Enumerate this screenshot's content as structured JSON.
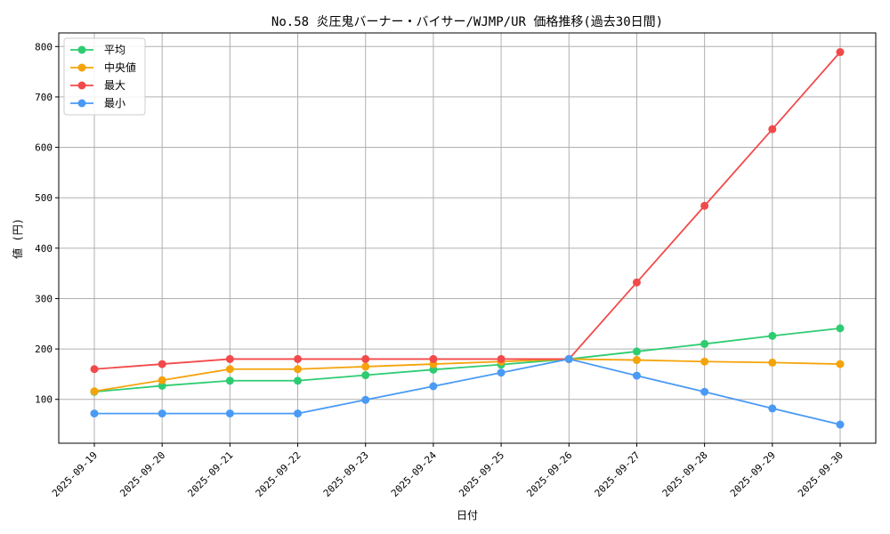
{
  "chart_data": {
    "type": "line",
    "title": "No.58 炎圧鬼バーナー・バイサー/WJMP/UR 価格推移(過去30日間)",
    "xlabel": "日付",
    "ylabel": "値 (円)",
    "categories": [
      "2025-09-19",
      "2025-09-20",
      "2025-09-21",
      "2025-09-22",
      "2025-09-23",
      "2025-09-24",
      "2025-09-25",
      "2025-09-26",
      "2025-09-27",
      "2025-09-28",
      "2025-09-29",
      "2025-09-30"
    ],
    "ylim": [
      13,
      827
    ],
    "yticks": [
      100,
      200,
      300,
      400,
      500,
      600,
      700,
      800
    ],
    "grid": true,
    "legend_position": "top-left",
    "series": [
      {
        "name": "平均",
        "color": "#2ecc71",
        "values": [
          115,
          127,
          137,
          137,
          148,
          159,
          169,
          180,
          195,
          210,
          226,
          241
        ]
      },
      {
        "name": "中央値",
        "color": "#f5a30a",
        "values": [
          116,
          138,
          160,
          160,
          165,
          170,
          175,
          180,
          178,
          175,
          173,
          170
        ]
      },
      {
        "name": "最大",
        "color": "#f24a4a",
        "values": [
          160,
          170,
          180,
          180,
          180,
          180,
          180,
          180,
          332,
          484,
          636,
          789
        ]
      },
      {
        "name": "最小",
        "color": "#4a9af5",
        "values": [
          72,
          72,
          72,
          72,
          99,
          126,
          153,
          180,
          147,
          115,
          82,
          50
        ]
      }
    ]
  }
}
